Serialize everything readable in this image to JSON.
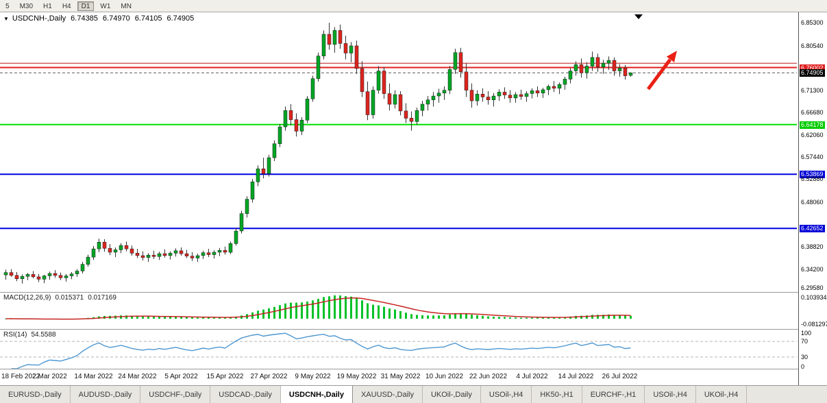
{
  "icons": {
    "symbol_dropdown": "▼",
    "chart_shift_marker": "▼"
  },
  "toolbar": {
    "periods": [
      {
        "label": "5",
        "active": false
      },
      {
        "label": "M30",
        "active": false
      },
      {
        "label": "H1",
        "active": false
      },
      {
        "label": "H4",
        "active": false
      },
      {
        "label": "D1",
        "active": true
      },
      {
        "label": "W1",
        "active": false
      },
      {
        "label": "MN",
        "active": false
      }
    ]
  },
  "chart_data": {
    "type": "candlestick",
    "symbol": "USDCNH-,Daily",
    "ohlc_label": {
      "open": "6.74385",
      "high": "6.74970",
      "low": "6.74105",
      "close": "6.74905"
    },
    "price_scale": {
      "top": 6.8745,
      "bottom": 6.2946
    },
    "up_color": "#00a524",
    "down_color": "#dc241f",
    "levels": [
      {
        "price": 6.769,
        "color": "#b81a1a",
        "width": 1
      },
      {
        "price": 6.76002,
        "color": "#e01f1f",
        "width": 2
      },
      {
        "price": 6.64178,
        "color": "#00e100",
        "width": 2
      },
      {
        "price": 6.53869,
        "color": "#0000e0",
        "width": 2
      },
      {
        "price": 6.42652,
        "color": "#0000e0",
        "width": 2
      }
    ],
    "current_price": {
      "value": 6.74905,
      "label": "6.74905"
    },
    "y_axis_labels": [
      {
        "price": 6.853,
        "text": "6.85300"
      },
      {
        "price": 6.8054,
        "text": "6.80540"
      },
      {
        "price": 6.76002,
        "text": "6.76002",
        "bg": "#e01f1f",
        "fg": "#ffffff"
      },
      {
        "price": 6.74905,
        "text": "6.74905",
        "bg": "#000000",
        "fg": "#ffffff"
      },
      {
        "price": 6.713,
        "text": "6.71300"
      },
      {
        "price": 6.6668,
        "text": "6.66680"
      },
      {
        "price": 6.64178,
        "text": "6.64178",
        "bg": "#00cc00",
        "fg": "#ffffff"
      },
      {
        "price": 6.6206,
        "text": "6.62060"
      },
      {
        "price": 6.5744,
        "text": "6.57440"
      },
      {
        "price": 6.53869,
        "text": "6.53869",
        "bg": "#0000d8",
        "fg": "#ffffff"
      },
      {
        "price": 6.5288,
        "text": "6.52880"
      },
      {
        "price": 6.4806,
        "text": "6.48060"
      },
      {
        "price": 6.42652,
        "text": "6.42652",
        "bg": "#0000d8",
        "fg": "#ffffff"
      },
      {
        "price": 6.3882,
        "text": "6.38820"
      },
      {
        "price": 6.342,
        "text": "6.34200"
      },
      {
        "price": 6.2958,
        "text": "6.29580"
      }
    ],
    "x_tick_labels": [
      "18 Feb 2022",
      "2 Mar 2022",
      "14 Mar 2022",
      "24 Mar 2022",
      "5 Apr 2022",
      "15 Apr 2022",
      "27 Apr 2022",
      "9 May 2022",
      "19 May 2022",
      "31 May 2022",
      "10 Jun 2022",
      "22 Jun 2022",
      "4 Jul 2022",
      "14 Jul 2022",
      "26 Jul 2022"
    ],
    "ticks_every_candles": 8,
    "annotation_arrow": {
      "color": "#ea2015",
      "description": "red up-right arrow annotation"
    },
    "candles": [
      [
        6.33,
        6.341,
        6.32,
        6.335
      ],
      [
        6.335,
        6.342,
        6.326,
        6.329
      ],
      [
        6.329,
        6.336,
        6.317,
        6.322
      ],
      [
        6.322,
        6.331,
        6.312,
        6.327
      ],
      [
        6.327,
        6.334,
        6.319,
        6.331
      ],
      [
        6.331,
        6.338,
        6.323,
        6.326
      ],
      [
        6.326,
        6.332,
        6.315,
        6.321
      ],
      [
        6.321,
        6.33,
        6.313,
        6.328
      ],
      [
        6.328,
        6.337,
        6.32,
        6.333
      ],
      [
        6.333,
        6.34,
        6.324,
        6.329
      ],
      [
        6.329,
        6.335,
        6.319,
        6.324
      ],
      [
        6.324,
        6.332,
        6.316,
        6.328
      ],
      [
        6.328,
        6.336,
        6.321,
        6.332
      ],
      [
        6.332,
        6.342,
        6.326,
        6.338
      ],
      [
        6.338,
        6.357,
        6.333,
        6.352
      ],
      [
        6.352,
        6.372,
        6.347,
        6.367
      ],
      [
        6.367,
        6.39,
        6.361,
        6.384
      ],
      [
        6.384,
        6.405,
        6.377,
        6.398
      ],
      [
        6.398,
        6.404,
        6.378,
        6.385
      ],
      [
        6.385,
        6.394,
        6.371,
        6.377
      ],
      [
        6.377,
        6.387,
        6.367,
        6.382
      ],
      [
        6.382,
        6.396,
        6.375,
        6.391
      ],
      [
        6.391,
        6.399,
        6.379,
        6.384
      ],
      [
        6.384,
        6.391,
        6.37,
        6.375
      ],
      [
        6.375,
        6.384,
        6.365,
        6.37
      ],
      [
        6.37,
        6.379,
        6.36,
        6.366
      ],
      [
        6.366,
        6.375,
        6.357,
        6.371
      ],
      [
        6.371,
        6.38,
        6.363,
        6.368
      ],
      [
        6.368,
        6.378,
        6.361,
        6.374
      ],
      [
        6.374,
        6.383,
        6.366,
        6.37
      ],
      [
        6.37,
        6.379,
        6.362,
        6.375
      ],
      [
        6.375,
        6.385,
        6.368,
        6.38
      ],
      [
        6.38,
        6.387,
        6.37,
        6.374
      ],
      [
        6.374,
        6.382,
        6.365,
        6.369
      ],
      [
        6.369,
        6.377,
        6.359,
        6.365
      ],
      [
        6.365,
        6.374,
        6.357,
        6.37
      ],
      [
        6.37,
        6.38,
        6.363,
        6.376
      ],
      [
        6.376,
        6.384,
        6.367,
        6.372
      ],
      [
        6.372,
        6.381,
        6.364,
        6.377
      ],
      [
        6.377,
        6.386,
        6.369,
        6.381
      ],
      [
        6.381,
        6.389,
        6.372,
        6.377
      ],
      [
        6.377,
        6.399,
        6.373,
        6.395
      ],
      [
        6.395,
        6.427,
        6.391,
        6.421
      ],
      [
        6.421,
        6.463,
        6.416,
        6.457
      ],
      [
        6.457,
        6.493,
        6.449,
        6.487
      ],
      [
        6.487,
        6.529,
        6.48,
        6.523
      ],
      [
        6.523,
        6.557,
        6.514,
        6.55
      ],
      [
        6.55,
        6.573,
        6.53,
        6.54
      ],
      [
        6.54,
        6.579,
        6.534,
        6.573
      ],
      [
        6.573,
        6.609,
        6.566,
        6.602
      ],
      [
        6.602,
        6.643,
        6.595,
        6.637
      ],
      [
        6.637,
        6.679,
        6.629,
        6.671
      ],
      [
        6.671,
        6.684,
        6.64,
        6.652
      ],
      [
        6.652,
        6.665,
        6.617,
        6.628
      ],
      [
        6.628,
        6.657,
        6.62,
        6.651
      ],
      [
        6.651,
        6.701,
        6.645,
        6.695
      ],
      [
        6.695,
        6.743,
        6.689,
        6.737
      ],
      [
        6.737,
        6.791,
        6.731,
        6.784
      ],
      [
        6.784,
        6.837,
        6.777,
        6.829
      ],
      [
        6.829,
        6.853,
        6.797,
        6.808
      ],
      [
        6.808,
        6.844,
        6.791,
        6.837
      ],
      [
        6.837,
        6.849,
        6.799,
        6.81
      ],
      [
        6.81,
        6.826,
        6.777,
        6.79
      ],
      [
        6.79,
        6.813,
        6.771,
        6.805
      ],
      [
        6.805,
        6.816,
        6.747,
        6.758
      ],
      [
        6.758,
        6.773,
        6.699,
        6.71
      ],
      [
        6.71,
        6.731,
        6.651,
        6.662
      ],
      [
        6.662,
        6.721,
        6.654,
        6.713
      ],
      [
        6.713,
        6.763,
        6.706,
        6.753
      ],
      [
        6.753,
        6.761,
        6.695,
        6.706
      ],
      [
        6.706,
        6.727,
        6.671,
        6.684
      ],
      [
        6.684,
        6.713,
        6.675,
        6.704
      ],
      [
        6.704,
        6.711,
        6.661,
        6.67
      ],
      [
        6.67,
        6.686,
        6.645,
        6.655
      ],
      [
        6.655,
        6.669,
        6.629,
        6.648
      ],
      [
        6.648,
        6.677,
        6.641,
        6.671
      ],
      [
        6.671,
        6.691,
        6.659,
        6.684
      ],
      [
        6.684,
        6.701,
        6.671,
        6.693
      ],
      [
        6.693,
        6.709,
        6.679,
        6.701
      ],
      [
        6.701,
        6.716,
        6.687,
        6.707
      ],
      [
        6.707,
        6.721,
        6.693,
        6.713
      ],
      [
        6.713,
        6.763,
        6.705,
        6.756
      ],
      [
        6.756,
        6.799,
        6.747,
        6.791
      ],
      [
        6.791,
        6.801,
        6.739,
        6.751
      ],
      [
        6.751,
        6.769,
        6.699,
        6.713
      ],
      [
        6.713,
        6.727,
        6.677,
        6.691
      ],
      [
        6.691,
        6.713,
        6.681,
        6.705
      ],
      [
        6.705,
        6.717,
        6.689,
        6.699
      ],
      [
        6.699,
        6.711,
        6.683,
        6.693
      ],
      [
        6.693,
        6.707,
        6.679,
        6.701
      ],
      [
        6.701,
        6.715,
        6.691,
        6.709
      ],
      [
        6.709,
        6.719,
        6.695,
        6.703
      ],
      [
        6.703,
        6.713,
        6.687,
        6.697
      ],
      [
        6.697,
        6.709,
        6.687,
        6.704
      ],
      [
        6.704,
        6.714,
        6.693,
        6.7
      ],
      [
        6.7,
        6.711,
        6.689,
        6.706
      ],
      [
        6.706,
        6.717,
        6.696,
        6.712
      ],
      [
        6.712,
        6.721,
        6.699,
        6.707
      ],
      [
        6.707,
        6.718,
        6.697,
        6.714
      ],
      [
        6.714,
        6.725,
        6.703,
        6.721
      ],
      [
        6.721,
        6.732,
        6.709,
        6.717
      ],
      [
        6.717,
        6.729,
        6.705,
        6.725
      ],
      [
        6.725,
        6.741,
        6.714,
        6.736
      ],
      [
        6.736,
        6.759,
        6.727,
        6.753
      ],
      [
        6.753,
        6.773,
        6.743,
        6.766
      ],
      [
        6.766,
        6.779,
        6.739,
        6.749
      ],
      [
        6.749,
        6.771,
        6.737,
        6.763
      ],
      [
        6.763,
        6.793,
        6.753,
        6.781
      ],
      [
        6.781,
        6.789,
        6.751,
        6.761
      ],
      [
        6.761,
        6.776,
        6.747,
        6.769
      ],
      [
        6.769,
        6.783,
        6.755,
        6.775
      ],
      [
        6.775,
        6.781,
        6.743,
        6.753
      ],
      [
        6.753,
        6.767,
        6.741,
        6.759
      ],
      [
        6.759,
        6.765,
        6.735,
        6.743
      ],
      [
        6.74385,
        6.7497,
        6.74105,
        6.74905
      ]
    ]
  },
  "macd": {
    "label": "MACD(12,26,9)",
    "value_main": "0.015371",
    "value_signal": "0.017169",
    "axis_top": "0.103934",
    "axis_bottom": "-0.081297",
    "hist_color": "#00c127",
    "signal_color": "#c62320",
    "params": {
      "fast": 12,
      "slow": 26,
      "signal": 9
    }
  },
  "rsi": {
    "label": "RSI(14)",
    "value": "54.5588",
    "period": 14,
    "levels": [
      100,
      70,
      30,
      0
    ],
    "dashed_levels": [
      70,
      30
    ],
    "line_color": "#4d97d1"
  },
  "tabs": [
    {
      "label": "EURUSD-,Daily",
      "active": false
    },
    {
      "label": "AUDUSD-,Daily",
      "active": false
    },
    {
      "label": "USDCHF-,Daily",
      "active": false
    },
    {
      "label": "USDCAD-,Daily",
      "active": false
    },
    {
      "label": "USDCNH-,Daily",
      "active": true
    },
    {
      "label": "XAUUSD-,Daily",
      "active": false
    },
    {
      "label": "UKOil-,Daily",
      "active": false
    },
    {
      "label": "USOil-,H4",
      "active": false
    },
    {
      "label": "HK50-,H1",
      "active": false
    },
    {
      "label": "EURCHF-,H1",
      "active": false
    },
    {
      "label": "USOil-,H4",
      "active": false
    },
    {
      "label": "UKOil-,H4",
      "active": false
    }
  ]
}
